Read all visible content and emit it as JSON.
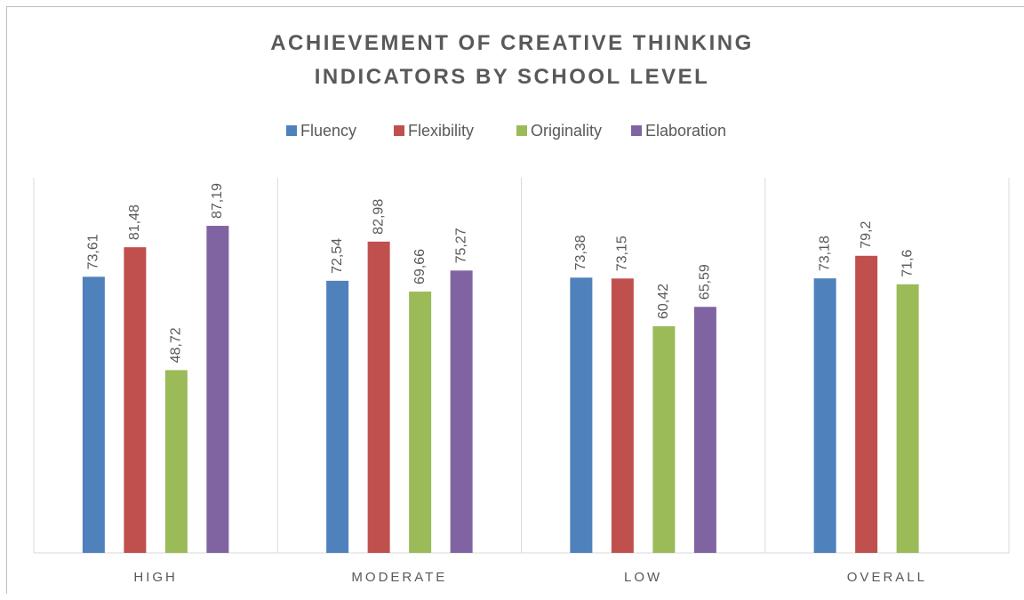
{
  "chart_data": {
    "type": "bar",
    "title": "ACHIEVEMENT OF CREATIVE THINKING INDICATORS BY SCHOOL LEVEL",
    "categories": [
      "HIGH",
      "MODERATE",
      "LOW",
      "OVERALL"
    ],
    "series": [
      {
        "name": "Fluency",
        "color": "#4f81bd",
        "values": [
          73.61,
          72.54,
          73.38,
          73.18
        ],
        "value_labels": [
          "73,61",
          "72,54",
          "73,38",
          "73,18"
        ]
      },
      {
        "name": "Flexibility",
        "color": "#c0504d",
        "values": [
          81.48,
          82.98,
          73.15,
          79.2
        ],
        "value_labels": [
          "81,48",
          "82,98",
          "73,15",
          "79,2"
        ]
      },
      {
        "name": "Originality",
        "color": "#9bbb59",
        "values": [
          48.72,
          69.66,
          60.42,
          71.6
        ],
        "value_labels": [
          "48,72",
          "69,66",
          "60,42",
          "71,6"
        ]
      },
      {
        "name": "Elaboration",
        "color": "#8064a2",
        "values": [
          87.19,
          75.27,
          65.59,
          null
        ],
        "value_labels": [
          "87,19",
          "75,27",
          "65,59",
          null
        ]
      }
    ],
    "ylim": [
      0,
      100
    ],
    "legend": "top"
  }
}
